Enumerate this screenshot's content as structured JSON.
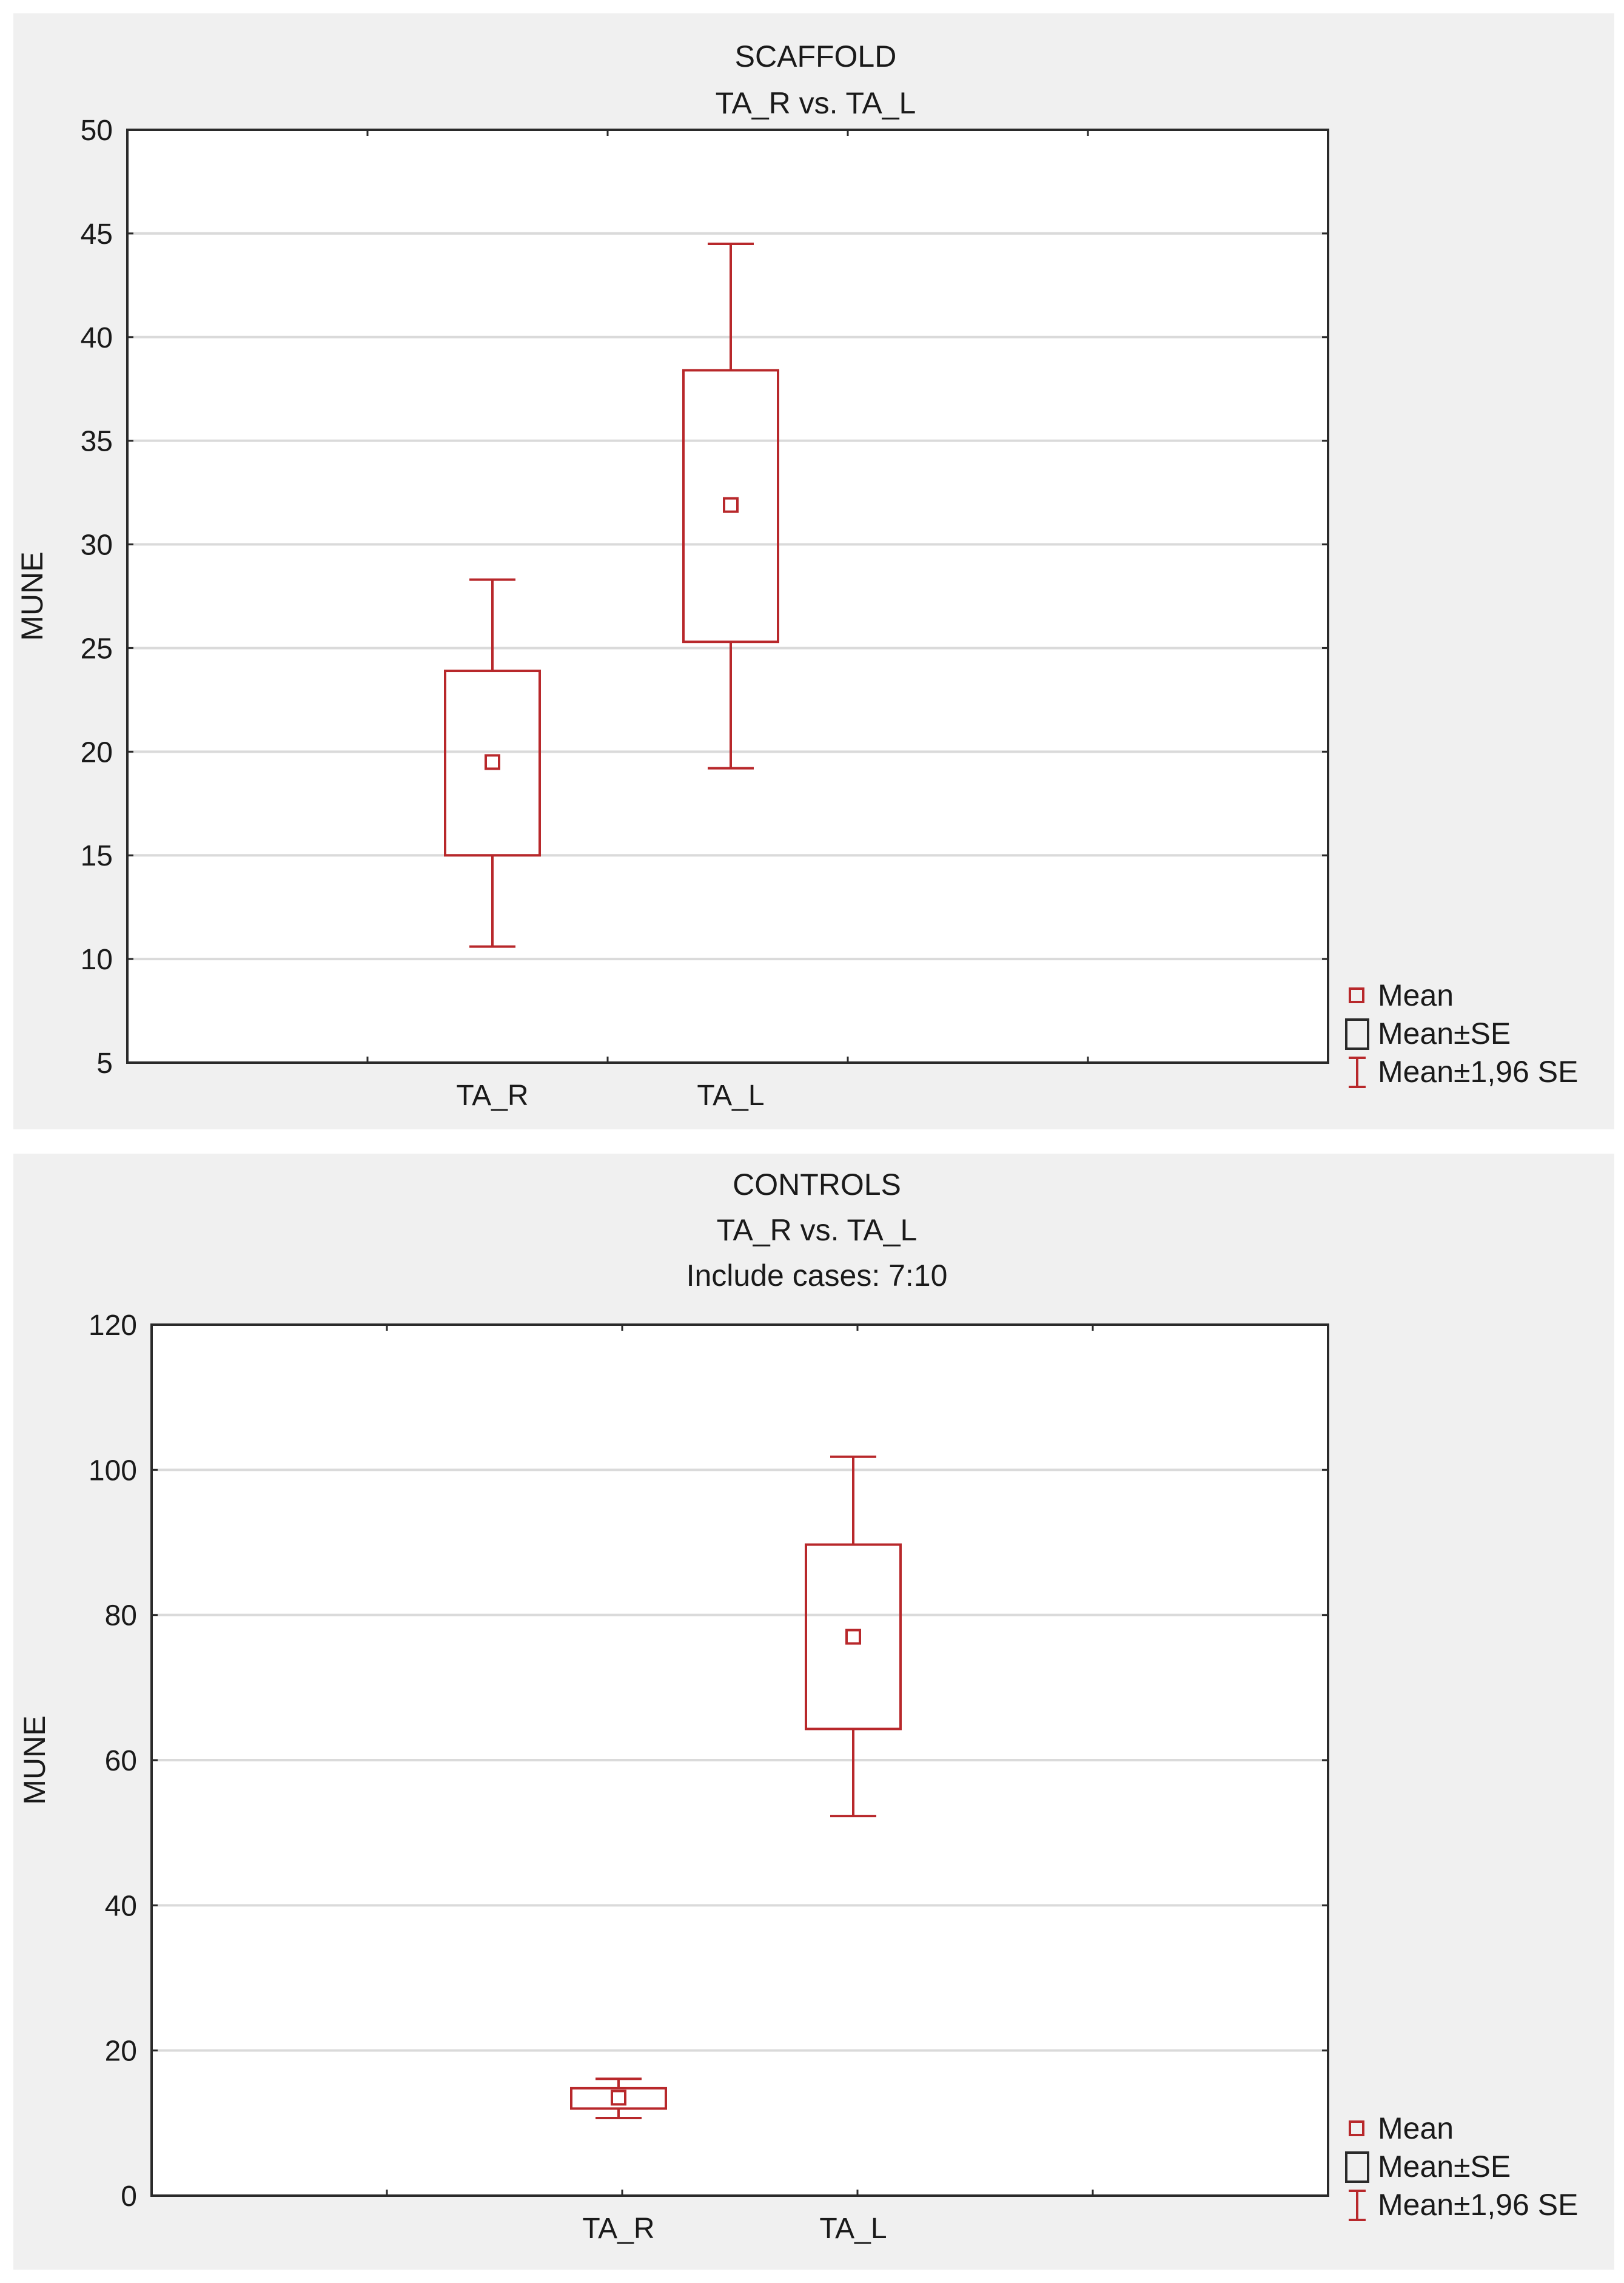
{
  "chart_data": [
    {
      "type": "box",
      "title": "SCAFFOLD",
      "subtitle": "TA_R vs. TA_L",
      "note": "",
      "xlabel": "",
      "ylabel": "MUNE",
      "ylim": [
        5,
        50
      ],
      "yticks": [
        5,
        10,
        15,
        20,
        25,
        30,
        35,
        40,
        45,
        50
      ],
      "categories": [
        "TA_R",
        "TA_L"
      ],
      "series": [
        {
          "category": "TA_R",
          "mean": 19.5,
          "mean_minus_se": 15.0,
          "mean_plus_se": 23.9,
          "mean_minus_196se": 10.6,
          "mean_plus_196se": 28.3
        },
        {
          "category": "TA_L",
          "mean": 31.9,
          "mean_minus_se": 25.3,
          "mean_plus_se": 38.4,
          "mean_minus_196se": 19.2,
          "mean_plus_196se": 44.5
        }
      ],
      "legend": [
        "Mean",
        "Mean±SE",
        "Mean±1,96 SE"
      ],
      "legend_position": "bottom-right",
      "grid": true
    },
    {
      "type": "box",
      "title": "CONTROLS",
      "subtitle": "TA_R vs. TA_L",
      "note": "Include cases: 7:10",
      "xlabel": "",
      "ylabel": "MUNE",
      "ylim": [
        0,
        120
      ],
      "yticks": [
        0,
        20,
        40,
        60,
        80,
        100,
        120
      ],
      "categories": [
        "TA_R",
        "TA_L"
      ],
      "series": [
        {
          "category": "TA_R",
          "mean": 13.5,
          "mean_minus_se": 12.0,
          "mean_plus_se": 14.8,
          "mean_minus_196se": 10.7,
          "mean_plus_196se": 16.1
        },
        {
          "category": "TA_L",
          "mean": 77.0,
          "mean_minus_se": 64.3,
          "mean_plus_se": 89.7,
          "mean_minus_196se": 52.3,
          "mean_plus_196se": 101.8
        }
      ],
      "legend": [
        "Mean",
        "Mean±SE",
        "Mean±1,96 SE"
      ],
      "legend_position": "bottom-right",
      "grid": true
    }
  ],
  "colors": {
    "series": "#b8282b",
    "grid": "#dadada",
    "frame": "#2a2a2a",
    "panel": "#f0f0f0",
    "plot": "#ffffff"
  }
}
